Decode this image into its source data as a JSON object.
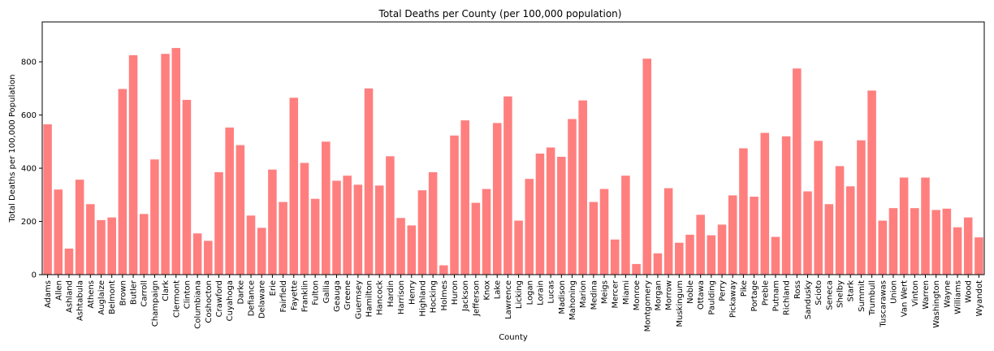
{
  "chart_data": {
    "type": "bar",
    "title": "Total Deaths per County (per 100,000 population)",
    "xlabel": "County",
    "ylabel": "Total Deaths per 100,000 Population",
    "ylim": [
      0,
      950
    ],
    "yticks": [
      0,
      200,
      400,
      600,
      800
    ],
    "grid": false,
    "bar_color": "#ff7f7f",
    "categories": [
      "Adams",
      "Allen",
      "Ashland",
      "Ashtabula",
      "Athens",
      "Auglaize",
      "Belmont",
      "Brown",
      "Butler",
      "Carroll",
      "Champaign",
      "Clark",
      "Clermont",
      "Clinton",
      "Columbiana",
      "Coshocton",
      "Crawford",
      "Cuyahoga",
      "Darke",
      "Defiance",
      "Delaware",
      "Erie",
      "Fairfield",
      "Fayette",
      "Franklin",
      "Fulton",
      "Gallia",
      "Geauga",
      "Greene",
      "Guernsey",
      "Hamilton",
      "Hancock",
      "Hardin",
      "Harrison",
      "Henry",
      "Highland",
      "Hocking",
      "Holmes",
      "Huron",
      "Jackson",
      "Jefferson",
      "Knox",
      "Lake",
      "Lawrence",
      "Licking",
      "Logan",
      "Lorain",
      "Lucas",
      "Madison",
      "Mahoning",
      "Marion",
      "Medina",
      "Meigs",
      "Mercer",
      "Miami",
      "Monroe",
      "Montgomery",
      "Morgan",
      "Morrow",
      "Muskingum",
      "Noble",
      "Ottawa",
      "Paulding",
      "Perry",
      "Pickaway",
      "Pike",
      "Portage",
      "Preble",
      "Putnam",
      "Richland",
      "Ross",
      "Sandusky",
      "Scioto",
      "Seneca",
      "Shelby",
      "Stark",
      "Summit",
      "Trumbull",
      "Tuscarawas",
      "Union",
      "Van Wert",
      "Vinton",
      "Warren",
      "Washington",
      "Wayne",
      "Williams",
      "Wood",
      "Wyandot"
    ],
    "values": [
      565,
      320,
      98,
      357,
      265,
      205,
      215,
      698,
      825,
      228,
      433,
      830,
      852,
      657,
      155,
      127,
      385,
      553,
      487,
      222,
      176,
      395,
      273,
      665,
      420,
      285,
      500,
      353,
      372,
      338,
      700,
      335,
      445,
      213,
      185,
      317,
      385,
      35,
      523,
      580,
      270,
      322,
      570,
      670,
      203,
      360,
      455,
      478,
      443,
      585,
      655,
      273,
      322,
      132,
      372,
      40,
      812,
      80,
      325,
      120,
      150,
      225,
      148,
      188,
      298,
      475,
      293,
      533,
      142,
      520,
      775,
      313,
      503,
      265,
      408,
      332,
      505,
      692,
      203,
      250,
      365,
      250,
      365,
      243,
      248,
      178,
      215,
      140
    ]
  }
}
